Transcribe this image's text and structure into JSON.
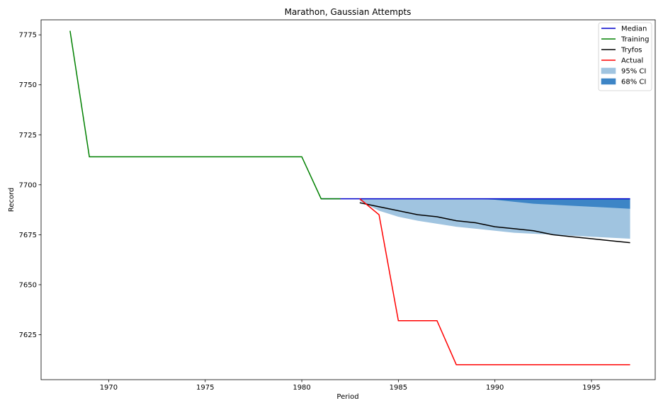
{
  "chart_data": {
    "type": "line",
    "title": "Marathon, Gaussian Attempts",
    "xlabel": "Period",
    "ylabel": "Record",
    "xlim": [
      1966.5,
      1998.3
    ],
    "ylim": [
      7602.5,
      7782.5
    ],
    "xticks": [
      1970,
      1975,
      1980,
      1985,
      1990,
      1995
    ],
    "yticks": [
      7625,
      7650,
      7675,
      7700,
      7725,
      7750,
      7775
    ],
    "grid": false,
    "legend_position": "top-right",
    "series": [
      {
        "name": "Median",
        "color": "#0000cc",
        "x": [
          1981,
          1982,
          1983,
          1984,
          1985,
          1986,
          1987,
          1988,
          1989,
          1990,
          1991,
          1992,
          1993,
          1994,
          1995,
          1996,
          1997
        ],
        "y": [
          7693,
          7693,
          7693,
          7693,
          7693,
          7693,
          7693,
          7693,
          7693,
          7693,
          7693,
          7693,
          7693,
          7693,
          7693,
          7693,
          7693
        ]
      },
      {
        "name": "Training",
        "color": "#008000",
        "x": [
          1968,
          1969,
          1970,
          1971,
          1972,
          1973,
          1974,
          1975,
          1976,
          1977,
          1978,
          1979,
          1980,
          1981,
          1982
        ],
        "y": [
          7777,
          7714,
          7714,
          7714,
          7714,
          7714,
          7714,
          7714,
          7714,
          7714,
          7714,
          7714,
          7714,
          7693,
          7693
        ]
      },
      {
        "name": "Tryfos",
        "color": "#000000",
        "x": [
          1983,
          1984,
          1985,
          1986,
          1987,
          1988,
          1989,
          1990,
          1991,
          1992,
          1993,
          1994,
          1995,
          1996,
          1997
        ],
        "y": [
          7691,
          7689,
          7687,
          7685,
          7684,
          7682,
          7681,
          7679,
          7678,
          7677,
          7675,
          7674,
          7673,
          7672,
          7671
        ]
      },
      {
        "name": "Actual",
        "color": "#ff0000",
        "x": [
          1983,
          1984,
          1985,
          1986,
          1987,
          1988,
          1989,
          1990,
          1991,
          1992,
          1993,
          1994,
          1995,
          1996,
          1997
        ],
        "y": [
          7693,
          7685,
          7632,
          7632,
          7632,
          7610,
          7610,
          7610,
          7610,
          7610,
          7610,
          7610,
          7610,
          7610,
          7610
        ]
      }
    ],
    "bands": [
      {
        "name": "95% CI",
        "color": "#a0c4e0",
        "x": [
          1983,
          1984,
          1985,
          1986,
          1987,
          1988,
          1989,
          1990,
          1991,
          1992,
          1993,
          1994,
          1995,
          1996,
          1997
        ],
        "lower": [
          7692,
          7687,
          7684,
          7682,
          7680.5,
          7679,
          7678,
          7677,
          7676,
          7675.5,
          7675,
          7674.5,
          7674,
          7673.5,
          7673
        ],
        "upper": [
          7693,
          7693,
          7693,
          7693,
          7693,
          7693,
          7693,
          7693,
          7693,
          7693,
          7693,
          7693,
          7693,
          7693,
          7693
        ]
      },
      {
        "name": "68% CI",
        "color": "#3d85c6",
        "x": [
          1983,
          1984,
          1985,
          1986,
          1987,
          1988,
          1989,
          1990,
          1991,
          1992,
          1993,
          1994,
          1995,
          1996,
          1997
        ],
        "lower": [
          7693,
          7693,
          7693,
          7693,
          7693,
          7693,
          7693,
          7692.5,
          7691.5,
          7690.5,
          7690,
          7689.5,
          7689,
          7688.5,
          7688
        ],
        "upper": [
          7693,
          7693,
          7693,
          7693,
          7693,
          7693,
          7693,
          7693,
          7693,
          7693,
          7693,
          7693,
          7693,
          7693,
          7693
        ]
      }
    ]
  }
}
